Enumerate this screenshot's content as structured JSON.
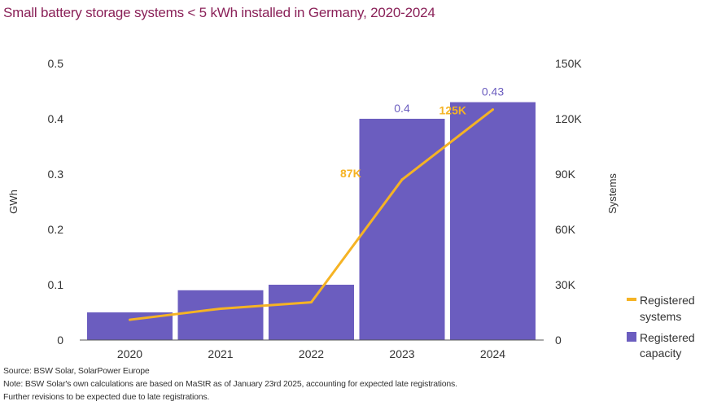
{
  "title": "Small battery storage systems < 5 kWh installed in Germany, 2020-2024",
  "colors": {
    "bar": "#6b5dbf",
    "line": "#f5b324",
    "title": "#8a2158",
    "axis": "#444444",
    "bar_label": "#6b5dbf",
    "line_label": "#f5b324"
  },
  "chart_data": {
    "type": "bar",
    "title": "Small battery storage systems < 5 kWh installed in Germany, 2020-2024",
    "categories": [
      "2020",
      "2021",
      "2022",
      "2023",
      "2024"
    ],
    "series": [
      {
        "name": "Registered capacity",
        "type": "bar",
        "axis": "left",
        "values": [
          0.05,
          0.09,
          0.1,
          0.4,
          0.43
        ],
        "labels": [
          "",
          "",
          "",
          "0.4",
          "0.43"
        ]
      },
      {
        "name": "Registered systems",
        "type": "line",
        "axis": "right",
        "values": [
          11000,
          17000,
          20500,
          87000,
          125000
        ],
        "labels": [
          "",
          "",
          "",
          "87K",
          "125K"
        ]
      }
    ],
    "ylabel": "GWh",
    "y2label": "Systems",
    "ylim": [
      0,
      0.5
    ],
    "y2lim": [
      0,
      150000
    ],
    "yticks": [
      "0",
      "0.1",
      "0.2",
      "0.3",
      "0.4",
      "0.5"
    ],
    "y2ticks": [
      "0",
      "30K",
      "60K",
      "90K",
      "120K",
      "150K"
    ],
    "grid": false,
    "legend": {
      "position": "bottom-right",
      "entries": [
        {
          "label_line1": "Registered",
          "label_line2": "systems",
          "kind": "line"
        },
        {
          "label_line1": "Registered",
          "label_line2": "capacity",
          "kind": "bar"
        }
      ]
    }
  },
  "footer": {
    "source": "Source: BSW Solar, SolarPower Europe",
    "note": "Note:  BSW Solar's own calculations are based on MaStR as of January 23rd 2025, accounting for expected late registrations.",
    "note2": "Further revisions to be expected due to late registrations."
  }
}
